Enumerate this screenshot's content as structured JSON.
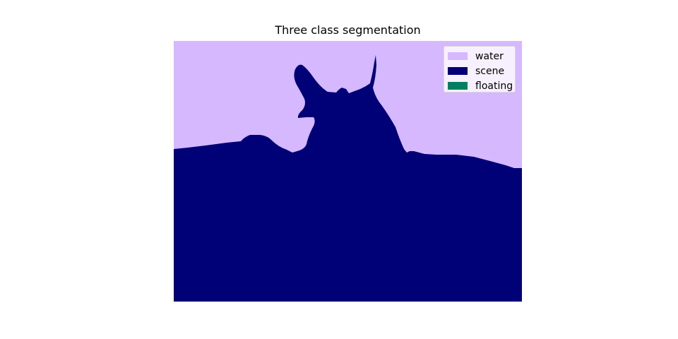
{
  "title": "Three class segmentation",
  "colors": {
    "water": "#d5b8ff",
    "scene": "#000077",
    "floating": "#008060"
  },
  "legend": [
    {
      "label": "water",
      "color": "#d5b8ff"
    },
    {
      "label": "scene",
      "color": "#000077"
    },
    {
      "label": "floating",
      "color": "#008060"
    }
  ]
}
